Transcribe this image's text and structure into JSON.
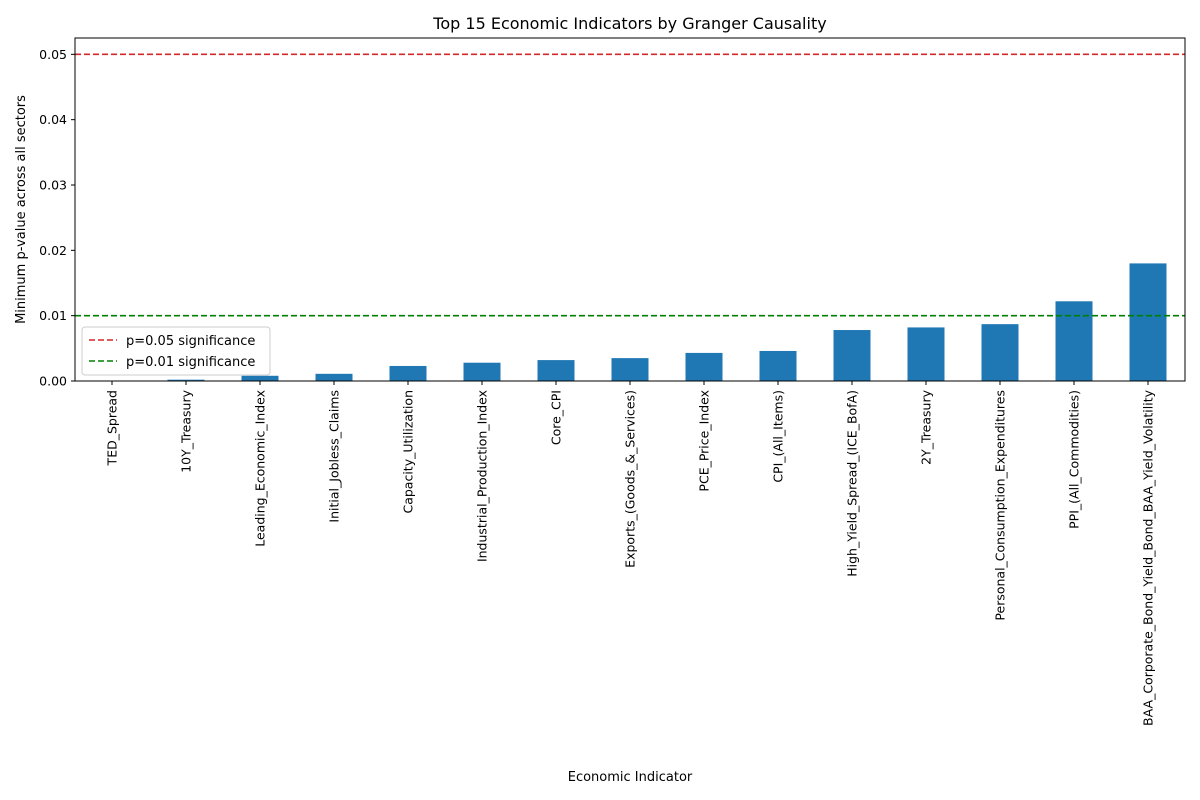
{
  "chart_data": {
    "type": "bar",
    "title": "Top 15 Economic Indicators by Granger Causality",
    "xlabel": "Economic Indicator",
    "ylabel": "Minimum p-value across all sectors",
    "ylim": [
      0,
      0.0525
    ],
    "yticks": [
      "0.00",
      "0.01",
      "0.02",
      "0.03",
      "0.04",
      "0.05"
    ],
    "ytick_values": [
      0,
      0.01,
      0.02,
      0.03,
      0.04,
      0.05
    ],
    "bar_color": "#1f77b4",
    "grid": false,
    "legend_position": "left, just below the green line",
    "categories": [
      "TED_Spread",
      "10Y_Treasury",
      "Leading_Economic_Index",
      "Initial_Jobless_Claims",
      "Capacity_Utilization",
      "Industrial_Production_Index",
      "Core_CPI",
      "Exports_(Goods_&_Services)",
      "PCE_Price_Index",
      "CPI_(All_Items)",
      "High_Yield_Spread_(ICE_BofA)",
      "2Y_Treasury",
      "Personal_Consumption_Expenditures",
      "PPI_(All_Commodities)",
      "BAA_Corporate_Bond_Yield_Bond_BAA_Yield_Volatility"
    ],
    "values": [
      2e-05,
      0.0002,
      0.0008,
      0.0011,
      0.0023,
      0.0028,
      0.0032,
      0.0035,
      0.0043,
      0.0046,
      0.0078,
      0.0082,
      0.0087,
      0.0122,
      0.018
    ],
    "reference_lines": [
      {
        "label": "p=0.05 significance",
        "value": 0.05,
        "color": "#d62728"
      },
      {
        "label": "p=0.01 significance",
        "value": 0.01,
        "color": "#008000"
      }
    ]
  }
}
